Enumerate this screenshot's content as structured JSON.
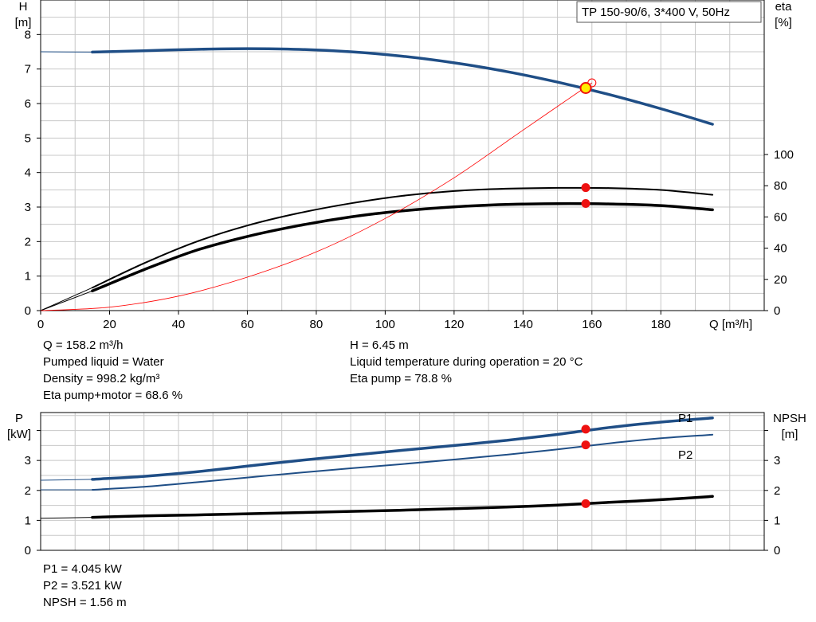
{
  "colors": {
    "blue": "#1f4e86",
    "black": "#000000",
    "red": "#ff0000",
    "marker_red": "#ee1111",
    "marker_yellow": "#ffee00",
    "grid": "#c8c8c8"
  },
  "title_box": "TP 150-90/6, 3*400 V, 50Hz",
  "operating_point": {
    "q": 158.2,
    "h": 6.45,
    "eta_pump": 78.8,
    "eta_pump_motor": 68.6,
    "p1": 4.045,
    "p2": 3.521,
    "npsh": 1.56
  },
  "chart_data": [
    {
      "type": "line",
      "id": "head-efficiency",
      "xlabel": "Q [m³/h]",
      "ylabel_left": [
        "H",
        "[m]"
      ],
      "ylabel_right": [
        "eta",
        "[%]"
      ],
      "xlim": [
        0,
        210
      ],
      "ylim_left": [
        0,
        9
      ],
      "ylim_right": [
        0,
        100
      ],
      "xticks": [
        0,
        20,
        40,
        60,
        80,
        100,
        120,
        140,
        160,
        180
      ],
      "yticks_left": [
        0,
        1,
        2,
        3,
        4,
        5,
        6,
        7,
        8
      ],
      "yticks_right": [
        0,
        20,
        40,
        60,
        80,
        100
      ],
      "grid": true,
      "series": [
        {
          "role": "head-curve",
          "axis": "left",
          "x": [
            0,
            15,
            30,
            45,
            60,
            75,
            90,
            105,
            120,
            135,
            150,
            165,
            180,
            195
          ],
          "y": [
            7.5,
            7.49,
            7.53,
            7.57,
            7.59,
            7.57,
            7.5,
            7.37,
            7.18,
            6.93,
            6.62,
            6.26,
            5.85,
            5.4
          ]
        },
        {
          "role": "eta-pump-curve",
          "axis": "right",
          "x": [
            0,
            15,
            30,
            45,
            60,
            75,
            90,
            105,
            120,
            135,
            150,
            165,
            180,
            195
          ],
          "y": [
            0,
            14.7,
            30.3,
            44,
            54.5,
            62.5,
            68.7,
            73.5,
            76.6,
            78.1,
            78.6,
            78.5,
            77.3,
            74.2
          ]
        },
        {
          "role": "eta-pump-motor-curve",
          "axis": "right",
          "x": [
            0,
            15,
            30,
            45,
            60,
            75,
            90,
            105,
            120,
            135,
            150,
            165,
            180,
            195
          ],
          "y": [
            0,
            12.6,
            26.2,
            38.5,
            47.5,
            54.5,
            60,
            63.9,
            66.5,
            68,
            68.5,
            68.3,
            67.3,
            64.6
          ]
        },
        {
          "role": "system-curve",
          "axis": "left",
          "x": [
            0,
            20,
            40,
            60,
            80,
            100,
            120,
            140,
            160
          ],
          "y": [
            0,
            0.1,
            0.42,
            0.97,
            1.7,
            2.67,
            3.85,
            5.23,
            6.6
          ]
        }
      ]
    },
    {
      "type": "line",
      "id": "power-npsh",
      "ylabel_left": [
        "P",
        "[kW]"
      ],
      "ylabel_right": [
        "NPSH",
        "[m]"
      ],
      "xlim": [
        0,
        210
      ],
      "ylim_left": [
        0,
        4.6
      ],
      "ylim_right": [
        0,
        4.6
      ],
      "yticks_left": [
        0,
        1,
        2,
        3
      ],
      "yticks_right": [
        0,
        1,
        2,
        3
      ],
      "grid": true,
      "series": [
        {
          "name": "P1",
          "role": "p1-curve",
          "axis": "left",
          "x": [
            0,
            15,
            30,
            45,
            60,
            75,
            90,
            105,
            120,
            135,
            150,
            165,
            180,
            195
          ],
          "y": [
            2.34,
            2.37,
            2.47,
            2.62,
            2.81,
            3.0,
            3.17,
            3.34,
            3.5,
            3.67,
            3.87,
            4.1,
            4.28,
            4.42
          ]
        },
        {
          "name": "P2",
          "role": "p2-curve",
          "axis": "left",
          "x": [
            0,
            15,
            30,
            45,
            60,
            75,
            90,
            105,
            120,
            135,
            150,
            165,
            180,
            195
          ],
          "y": [
            2.02,
            2.02,
            2.12,
            2.27,
            2.43,
            2.59,
            2.74,
            2.88,
            3.03,
            3.19,
            3.37,
            3.57,
            3.74,
            3.86
          ]
        },
        {
          "role": "npsh-curve",
          "axis": "right",
          "x": [
            0,
            15,
            30,
            45,
            60,
            75,
            90,
            105,
            120,
            135,
            150,
            165,
            180,
            195
          ],
          "y": [
            1.07,
            1.1,
            1.15,
            1.18,
            1.22,
            1.26,
            1.3,
            1.34,
            1.39,
            1.44,
            1.51,
            1.6,
            1.69,
            1.8
          ]
        }
      ]
    }
  ],
  "info_top_left": [
    "Q = 158.2 m³/h",
    "Pumped liquid = Water",
    "Density = 998.2 kg/m³",
    "Eta pump+motor = 68.6 %"
  ],
  "info_top_right": [
    "H = 6.45 m",
    "Liquid temperature during operation = 20 °C",
    "Eta pump = 78.8 %"
  ],
  "info_bottom": [
    "P1 = 4.045 kW",
    "P2 = 3.521 kW",
    "NPSH = 1.56 m"
  ]
}
